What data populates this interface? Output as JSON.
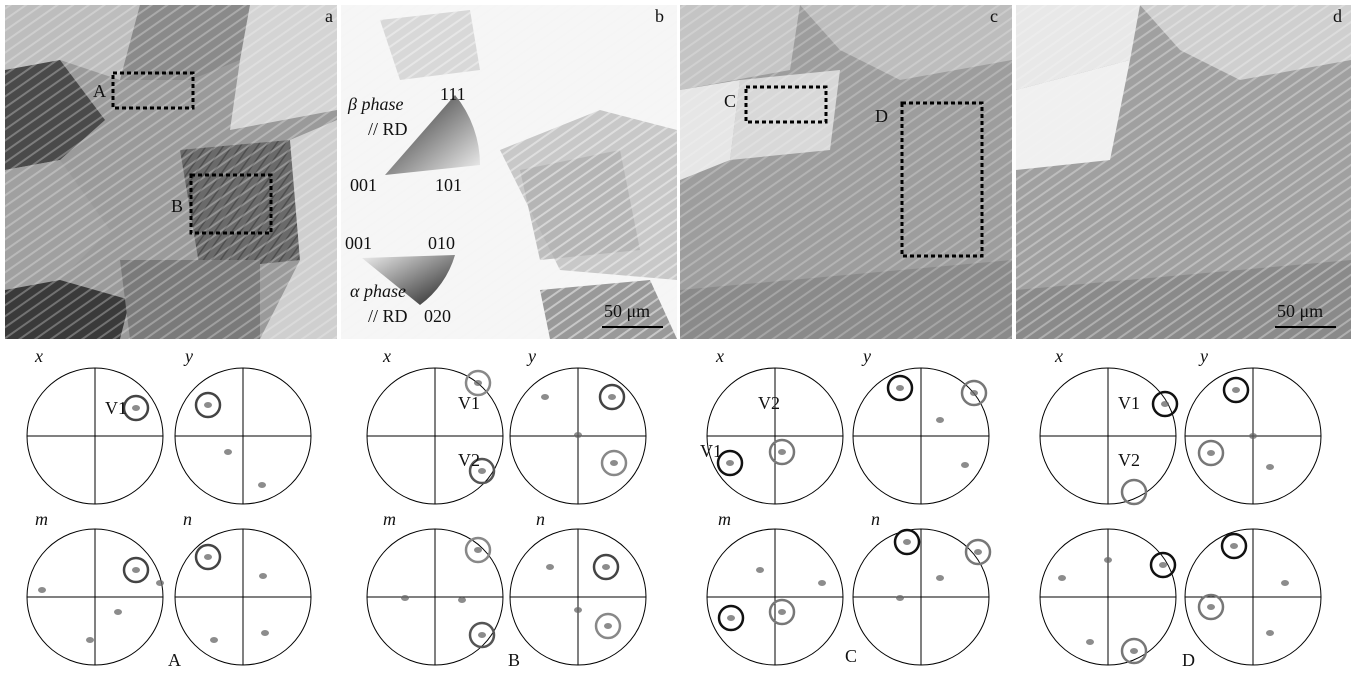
{
  "micrographs": [
    {
      "label": "a",
      "boxes": [
        "A",
        "B"
      ]
    },
    {
      "label": "b",
      "scale_bar": "50 μm",
      "beta_key": {
        "phase": "β phase",
        "direction": "// RD",
        "top": "111",
        "left": "001",
        "right": "101"
      },
      "alpha_key": {
        "phase": "α phase",
        "direction": "// RD",
        "left": "001",
        "right": "010",
        "bottom": "020"
      }
    },
    {
      "label": "c",
      "boxes": [
        "C",
        "D"
      ]
    },
    {
      "label": "d",
      "scale_bar": "50 μm"
    }
  ],
  "pole_figures": [
    {
      "label": "A",
      "plots": [
        {
          "label": "x",
          "variants": [
            "V1"
          ]
        },
        {
          "label": "y"
        },
        {
          "label": "m"
        },
        {
          "label": "n"
        }
      ]
    },
    {
      "label": "B",
      "plots": [
        {
          "label": "x",
          "variants": [
            "V1",
            "V2"
          ]
        },
        {
          "label": "y"
        },
        {
          "label": "m"
        },
        {
          "label": "n"
        }
      ]
    },
    {
      "label": "C",
      "plots": [
        {
          "label": "x",
          "variants": [
            "V2",
            "V1"
          ]
        },
        {
          "label": "y"
        },
        {
          "label": "m"
        },
        {
          "label": "n"
        }
      ]
    },
    {
      "label": "D",
      "plots": [
        {
          "label": "x",
          "variants": [
            "V1",
            "V2"
          ]
        },
        {
          "label": "y"
        }
      ]
    }
  ]
}
